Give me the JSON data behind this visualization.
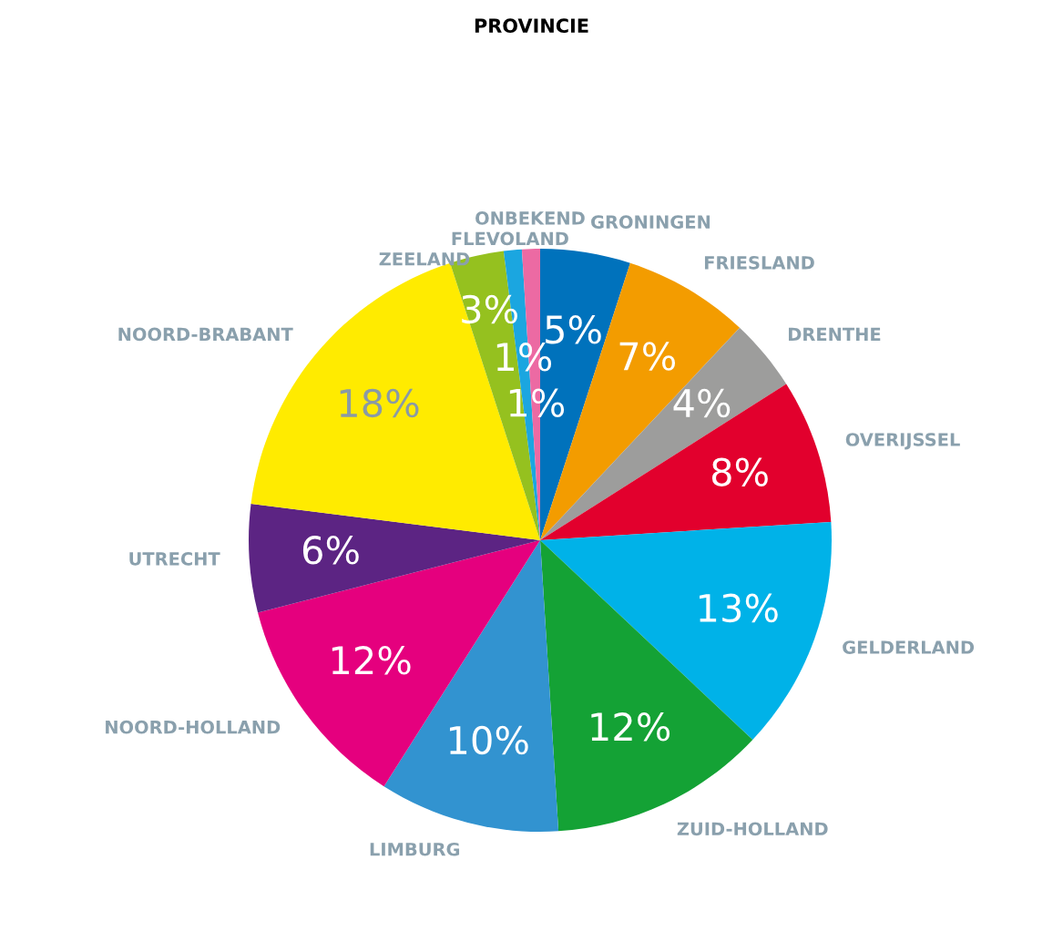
{
  "chart_data": {
    "type": "pie",
    "title": "PROVINCIE",
    "categories": [
      "GRONINGEN",
      "FRIESLAND",
      "DRENTHE",
      "OVERIJSSEL",
      "GELDERLAND",
      "ZUID-HOLLAND",
      "LIMBURG",
      "NOORD-HOLLAND",
      "UTRECHT",
      "NOORD-BRABANT",
      "ZEELAND",
      "FLEVOLAND",
      "ONBEKEND"
    ],
    "values": [
      5,
      7,
      4,
      8,
      13,
      12,
      10,
      12,
      6,
      18,
      3,
      1,
      1
    ],
    "value_labels": [
      "5%",
      "7%",
      "4%",
      "8%",
      "13%",
      "12%",
      "10%",
      "12%",
      "6%",
      "18%",
      "3%",
      "1%",
      "1%"
    ],
    "colors": [
      "#0072bc",
      "#f39c00",
      "#9d9d9c",
      "#e2002d",
      "#00b2e8",
      "#14a235",
      "#3293d0",
      "#e5007e",
      "#5c2483",
      "#ffeb00",
      "#95c11f",
      "#1ba6e0",
      "#ec6aa3"
    ]
  }
}
